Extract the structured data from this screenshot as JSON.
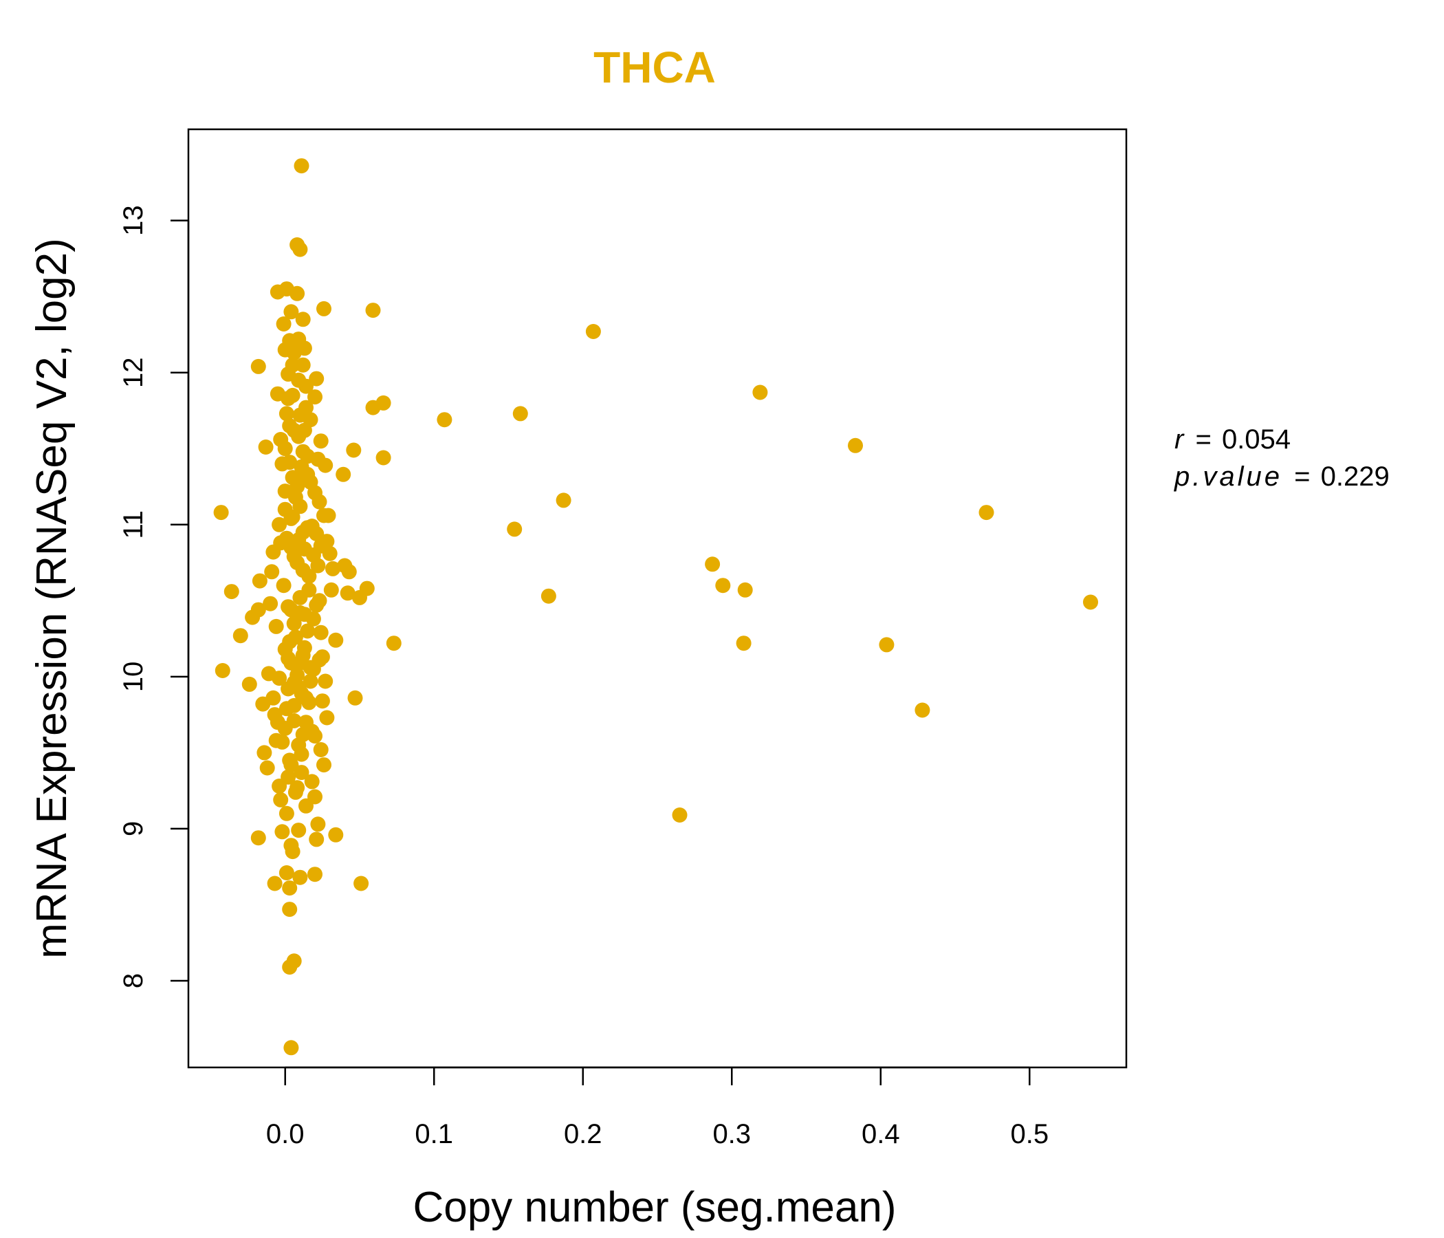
{
  "chart_data": {
    "type": "scatter",
    "title": "THCA",
    "xlabel": "Copy number (seg.mean)",
    "ylabel": "mRNA Expression (RNASeq V2, log2)",
    "xlim": [
      -0.065,
      0.565
    ],
    "ylim": [
      7.43,
      13.6
    ],
    "xticks": [
      "0.0",
      "0.1",
      "0.2",
      "0.3",
      "0.4",
      "0.5"
    ],
    "xtick_values": [
      0.0,
      0.1,
      0.2,
      0.3,
      0.4,
      0.5
    ],
    "yticks": [
      "8",
      "9",
      "10",
      "11",
      "12",
      "13"
    ],
    "ytick_values": [
      8,
      9,
      10,
      11,
      12,
      13
    ],
    "grid": false,
    "point_color": "#E5AC00",
    "stats": {
      "r_label": "r",
      "r_value": "0.054",
      "p_label": "p.value",
      "p_value": "0.229",
      "equals": "="
    },
    "points": [
      [
        0.011,
        13.36
      ],
      [
        0.008,
        12.84
      ],
      [
        0.01,
        12.81
      ],
      [
        -0.005,
        12.53
      ],
      [
        0.001,
        12.55
      ],
      [
        0.008,
        12.52
      ],
      [
        0.026,
        12.42
      ],
      [
        0.059,
        12.41
      ],
      [
        0.004,
        12.4
      ],
      [
        -0.001,
        12.32
      ],
      [
        0.012,
        12.35
      ],
      [
        0.207,
        12.27
      ],
      [
        0.003,
        12.21
      ],
      [
        0.009,
        12.22
      ],
      [
        0.0,
        12.15
      ],
      [
        0.006,
        12.13
      ],
      [
        0.013,
        12.16
      ],
      [
        -0.018,
        12.04
      ],
      [
        0.012,
        12.05
      ],
      [
        0.021,
        11.96
      ],
      [
        0.002,
        11.99
      ],
      [
        0.319,
        11.87
      ],
      [
        0.014,
        11.91
      ],
      [
        0.02,
        11.84
      ],
      [
        -0.005,
        11.86
      ],
      [
        0.005,
        11.85
      ],
      [
        0.066,
        11.8
      ],
      [
        0.059,
        11.77
      ],
      [
        0.158,
        11.73
      ],
      [
        0.107,
        11.69
      ],
      [
        0.01,
        11.72
      ],
      [
        0.017,
        11.69
      ],
      [
        0.001,
        11.73
      ],
      [
        0.003,
        11.65
      ],
      [
        0.013,
        11.62
      ],
      [
        0.009,
        11.58
      ],
      [
        0.024,
        11.55
      ],
      [
        0.383,
        11.52
      ],
      [
        -0.013,
        11.51
      ],
      [
        0.046,
        11.49
      ],
      [
        0.0,
        11.5
      ],
      [
        0.015,
        11.45
      ],
      [
        0.066,
        11.44
      ],
      [
        0.022,
        11.43
      ],
      [
        0.027,
        11.39
      ],
      [
        -0.002,
        11.4
      ],
      [
        0.011,
        11.38
      ],
      [
        0.039,
        11.33
      ],
      [
        0.005,
        11.31
      ],
      [
        0.017,
        11.28
      ],
      [
        0.02,
        11.21
      ],
      [
        0.0,
        11.22
      ],
      [
        0.187,
        11.16
      ],
      [
        0.023,
        11.15
      ],
      [
        0.01,
        11.12
      ],
      [
        -0.043,
        11.08
      ],
      [
        0.471,
        11.08
      ],
      [
        0.026,
        11.06
      ],
      [
        0.004,
        11.04
      ],
      [
        -0.004,
        11.0
      ],
      [
        0.015,
        10.98
      ],
      [
        0.154,
        10.97
      ],
      [
        0.021,
        10.94
      ],
      [
        0.009,
        10.9
      ],
      [
        0.028,
        10.89
      ],
      [
        0.004,
        10.85
      ],
      [
        0.013,
        10.84
      ],
      [
        -0.008,
        10.82
      ],
      [
        0.019,
        10.8
      ],
      [
        0.006,
        10.79
      ],
      [
        0.287,
        10.74
      ],
      [
        0.04,
        10.73
      ],
      [
        0.032,
        10.71
      ],
      [
        0.043,
        10.69
      ],
      [
        0.012,
        10.7
      ],
      [
        -0.017,
        10.63
      ],
      [
        0.294,
        10.6
      ],
      [
        0.055,
        10.58
      ],
      [
        0.309,
        10.57
      ],
      [
        -0.036,
        10.56
      ],
      [
        0.042,
        10.55
      ],
      [
        0.05,
        10.52
      ],
      [
        0.177,
        10.53
      ],
      [
        0.541,
        10.49
      ],
      [
        0.023,
        10.5
      ],
      [
        0.002,
        10.46
      ],
      [
        -0.018,
        10.44
      ],
      [
        0.01,
        10.42
      ],
      [
        -0.022,
        10.39
      ],
      [
        0.006,
        10.35
      ],
      [
        0.024,
        10.29
      ],
      [
        -0.03,
        10.27
      ],
      [
        0.015,
        10.3
      ],
      [
        0.034,
        10.24
      ],
      [
        0.073,
        10.22
      ],
      [
        0.308,
        10.22
      ],
      [
        0.404,
        10.21
      ],
      [
        0.0,
        10.18
      ],
      [
        0.012,
        10.14
      ],
      [
        0.023,
        10.11
      ],
      [
        0.004,
        10.09
      ],
      [
        -0.042,
        10.04
      ],
      [
        0.019,
        10.05
      ],
      [
        0.008,
        10.01
      ],
      [
        -0.024,
        9.95
      ],
      [
        0.017,
        9.97
      ],
      [
        0.002,
        9.92
      ],
      [
        0.011,
        9.89
      ],
      [
        0.047,
        9.86
      ],
      [
        0.025,
        9.84
      ],
      [
        -0.015,
        9.82
      ],
      [
        0.006,
        9.81
      ],
      [
        0.428,
        9.78
      ],
      [
        -0.007,
        9.75
      ],
      [
        0.028,
        9.73
      ],
      [
        0.014,
        9.7
      ],
      [
        0.0,
        9.66
      ],
      [
        0.02,
        9.61
      ],
      [
        -0.006,
        9.58
      ],
      [
        0.009,
        9.55
      ],
      [
        0.024,
        9.52
      ],
      [
        -0.014,
        9.5
      ],
      [
        0.003,
        9.45
      ],
      [
        0.026,
        9.42
      ],
      [
        -0.012,
        9.4
      ],
      [
        0.011,
        9.37
      ],
      [
        0.018,
        9.31
      ],
      [
        -0.004,
        9.28
      ],
      [
        0.007,
        9.24
      ],
      [
        0.02,
        9.21
      ],
      [
        -0.003,
        9.19
      ],
      [
        0.014,
        9.15
      ],
      [
        0.001,
        9.1
      ],
      [
        0.265,
        9.09
      ],
      [
        0.022,
        9.03
      ],
      [
        0.009,
        8.99
      ],
      [
        -0.002,
        8.98
      ],
      [
        0.034,
        8.96
      ],
      [
        -0.018,
        8.94
      ],
      [
        0.021,
        8.93
      ],
      [
        0.004,
        8.89
      ],
      [
        0.005,
        8.85
      ],
      [
        0.051,
        8.64
      ],
      [
        0.001,
        8.71
      ],
      [
        0.02,
        8.7
      ],
      [
        0.01,
        8.68
      ],
      [
        -0.007,
        8.64
      ],
      [
        0.003,
        8.61
      ],
      [
        0.003,
        8.47
      ],
      [
        0.006,
        8.13
      ],
      [
        0.003,
        8.09
      ],
      [
        0.004,
        7.56
      ],
      [
        0.0,
        11.1
      ],
      [
        0.005,
        11.05
      ],
      [
        0.012,
        10.95
      ],
      [
        -0.003,
        10.88
      ],
      [
        0.008,
        10.75
      ],
      [
        0.016,
        10.66
      ],
      [
        -0.001,
        10.6
      ],
      [
        0.01,
        10.52
      ],
      [
        0.004,
        10.44
      ],
      [
        0.019,
        10.38
      ],
      [
        -0.006,
        10.33
      ],
      [
        0.007,
        10.26
      ],
      [
        0.013,
        10.19
      ],
      [
        0.002,
        10.12
      ],
      [
        0.017,
        10.06
      ],
      [
        -0.004,
        9.99
      ],
      [
        0.009,
        9.93
      ],
      [
        0.014,
        9.86
      ],
      [
        0.001,
        9.79
      ],
      [
        0.006,
        9.71
      ],
      [
        0.018,
        9.64
      ],
      [
        -0.002,
        9.57
      ],
      [
        0.011,
        9.49
      ],
      [
        0.004,
        9.42
      ],
      [
        0.008,
        11.25
      ],
      [
        0.015,
        11.33
      ],
      [
        0.003,
        11.41
      ],
      [
        0.012,
        11.48
      ],
      [
        -0.003,
        11.56
      ],
      [
        0.006,
        11.62
      ],
      [
        0.014,
        11.77
      ],
      [
        0.002,
        11.83
      ],
      [
        0.009,
        11.95
      ],
      [
        0.005,
        12.05
      ],
      [
        0.016,
        10.57
      ],
      [
        0.021,
        10.47
      ],
      [
        0.025,
        10.13
      ],
      [
        0.027,
        9.97
      ],
      [
        0.022,
        10.73
      ],
      [
        0.018,
        10.99
      ],
      [
        -0.009,
        10.69
      ],
      [
        -0.01,
        10.48
      ],
      [
        -0.011,
        10.02
      ],
      [
        -0.008,
        9.86
      ],
      [
        0.03,
        10.81
      ],
      [
        0.031,
        10.57
      ],
      [
        0.029,
        11.06
      ],
      [
        0.024,
        10.86
      ],
      [
        0.007,
        11.18
      ],
      [
        0.011,
        11.29
      ],
      [
        0.001,
        10.91
      ],
      [
        0.013,
        10.41
      ],
      [
        0.003,
        10.23
      ],
      [
        0.01,
        10.09
      ],
      [
        0.006,
        9.96
      ],
      [
        0.016,
        9.83
      ],
      [
        -0.005,
        9.7
      ],
      [
        0.012,
        9.62
      ],
      [
        0.002,
        9.34
      ],
      [
        0.008,
        9.27
      ]
    ]
  }
}
